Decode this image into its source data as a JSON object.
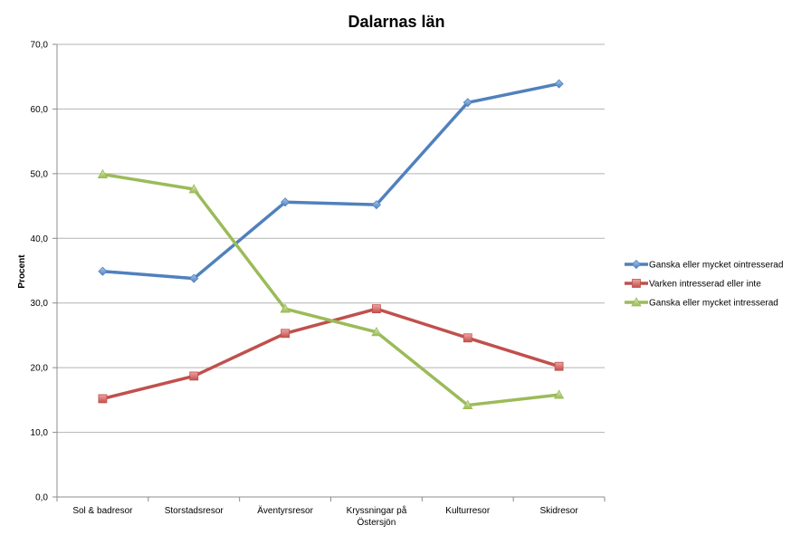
{
  "chart_data": {
    "type": "line",
    "title": "Dalarnas län",
    "xlabel": "",
    "ylabel": "Procent",
    "ylim": [
      0,
      70
    ],
    "ytick_step": 10,
    "ytick_labels": [
      "0,0",
      "10,0",
      "20,0",
      "30,0",
      "40,0",
      "50,0",
      "60,0",
      "70,0"
    ],
    "grid": true,
    "legend_position": "right",
    "categories": [
      "Sol & badresor",
      "Storstadsresor",
      "Äventyrsresor",
      "Kryssningar på Östersjön",
      "Kulturresor",
      "Skidresor"
    ],
    "category_lines": [
      [
        "Sol & badresor"
      ],
      [
        "Storstadsresor"
      ],
      [
        "Äventyrsresor"
      ],
      [
        "Kryssningar på",
        "Östersjön"
      ],
      [
        "Kulturresor"
      ],
      [
        "Skidresor"
      ]
    ],
    "series": [
      {
        "name": "Ganska eller mycket ointresserad",
        "color": "#4f81bd",
        "marker": "diamond",
        "values": [
          34.9,
          33.8,
          45.6,
          45.2,
          61.0,
          63.9
        ]
      },
      {
        "name": "Varken intresserad eller inte",
        "color": "#c0504d",
        "marker": "square",
        "values": [
          15.2,
          18.7,
          25.3,
          29.1,
          24.6,
          20.2
        ]
      },
      {
        "name": "Ganska eller mycket intresserad",
        "color": "#9bbb59",
        "marker": "triangle",
        "values": [
          49.9,
          47.6,
          29.1,
          25.5,
          14.2,
          15.8
        ]
      }
    ]
  }
}
